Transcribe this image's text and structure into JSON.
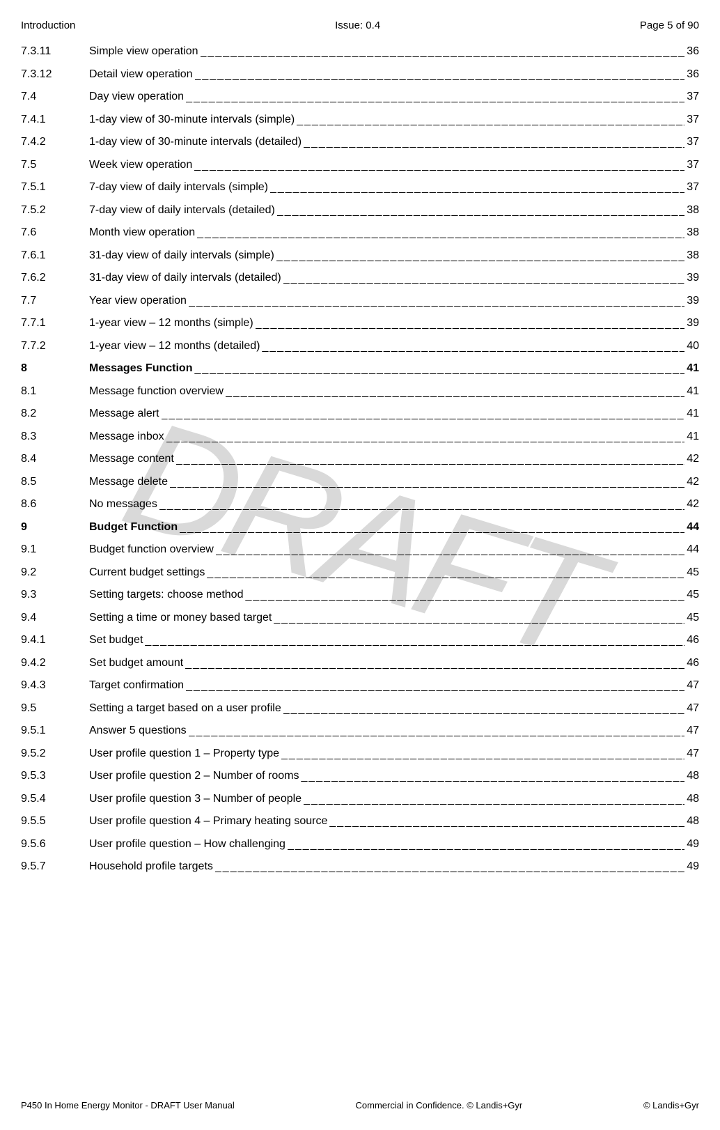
{
  "header": {
    "left": "Introduction",
    "center": "Issue: 0.4",
    "right": "Page 5 of 90"
  },
  "watermark": "DRAFT",
  "toc": [
    {
      "num": "7.3.11",
      "title": "Simple view operation",
      "page": "36",
      "bold": false
    },
    {
      "num": "7.3.12",
      "title": "Detail view operation",
      "page": "36",
      "bold": false
    },
    {
      "num": "7.4",
      "title": "Day view operation",
      "page": "37",
      "bold": false
    },
    {
      "num": "7.4.1",
      "title": "1-day view of 30-minute intervals (simple)",
      "page": "37",
      "bold": false
    },
    {
      "num": "7.4.2",
      "title": "1-day view of 30-minute intervals (detailed)",
      "page": "37",
      "bold": false
    },
    {
      "num": "7.5",
      "title": "Week view operation",
      "page": "37",
      "bold": false
    },
    {
      "num": "7.5.1",
      "title": "7-day view of daily intervals (simple)",
      "page": "37",
      "bold": false
    },
    {
      "num": "7.5.2",
      "title": "7-day view of daily intervals (detailed)",
      "page": "38",
      "bold": false
    },
    {
      "num": "7.6",
      "title": "Month view operation",
      "page": "38",
      "bold": false
    },
    {
      "num": "7.6.1",
      "title": "31-day view of daily intervals (simple)",
      "page": "38",
      "bold": false
    },
    {
      "num": "7.6.2",
      "title": "31-day view of daily intervals (detailed)",
      "page": "39",
      "bold": false
    },
    {
      "num": "7.7",
      "title": "Year view operation",
      "page": "39",
      "bold": false
    },
    {
      "num": "7.7.1",
      "title": "1-year view – 12 months (simple)",
      "page": "39",
      "bold": false
    },
    {
      "num": "7.7.2",
      "title": "1-year view – 12 months (detailed)",
      "page": "40",
      "bold": false
    },
    {
      "num": "8",
      "title": "Messages Function",
      "page": "41",
      "bold": true
    },
    {
      "num": "8.1",
      "title": "Message function overview",
      "page": "41",
      "bold": false
    },
    {
      "num": "8.2",
      "title": "Message alert",
      "page": "41",
      "bold": false
    },
    {
      "num": "8.3",
      "title": "Message inbox",
      "page": "41",
      "bold": false
    },
    {
      "num": "8.4",
      "title": "Message content",
      "page": "42",
      "bold": false
    },
    {
      "num": "8.5",
      "title": "Message delete",
      "page": "42",
      "bold": false
    },
    {
      "num": "8.6",
      "title": "No messages",
      "page": "42",
      "bold": false
    },
    {
      "num": "9",
      "title": "Budget Function",
      "page": "44",
      "bold": true
    },
    {
      "num": "9.1",
      "title": "Budget function overview",
      "page": "44",
      "bold": false
    },
    {
      "num": "9.2",
      "title": "Current budget settings",
      "page": "45",
      "bold": false
    },
    {
      "num": "9.3",
      "title": "Setting targets: choose method",
      "page": "45",
      "bold": false
    },
    {
      "num": "9.4",
      "title": "Setting a time or money based target",
      "page": "45",
      "bold": false
    },
    {
      "num": "9.4.1",
      "title": "Set budget",
      "page": "46",
      "bold": false
    },
    {
      "num": "9.4.2",
      "title": "Set budget amount",
      "page": "46",
      "bold": false
    },
    {
      "num": "9.4.3",
      "title": "Target confirmation",
      "page": "47",
      "bold": false
    },
    {
      "num": "9.5",
      "title": "Setting a target based on a user profile",
      "page": "47",
      "bold": false
    },
    {
      "num": "9.5.1",
      "title": "Answer 5 questions",
      "page": "47",
      "bold": false
    },
    {
      "num": "9.5.2",
      "title": "User profile question 1 – Property type",
      "page": "47",
      "bold": false
    },
    {
      "num": "9.5.3",
      "title": "User profile question 2 – Number of rooms",
      "page": "48",
      "bold": false
    },
    {
      "num": "9.5.4",
      "title": "User profile question 3 – Number of people",
      "page": "48",
      "bold": false
    },
    {
      "num": "9.5.5",
      "title": "User profile question 4 – Primary heating source",
      "page": "48",
      "bold": false
    },
    {
      "num": "9.5.6",
      "title": "User profile question – How challenging",
      "page": "49",
      "bold": false
    },
    {
      "num": "9.5.7",
      "title": "Household profile targets",
      "page": "49",
      "bold": false
    }
  ],
  "footer": {
    "left": "P450 In Home Energy Monitor - DRAFT User Manual",
    "center": "Commercial in Confidence. © Landis+Gyr",
    "right": "© Landis+Gyr"
  },
  "leader_char": "________________________________________________________________________________________________________________"
}
